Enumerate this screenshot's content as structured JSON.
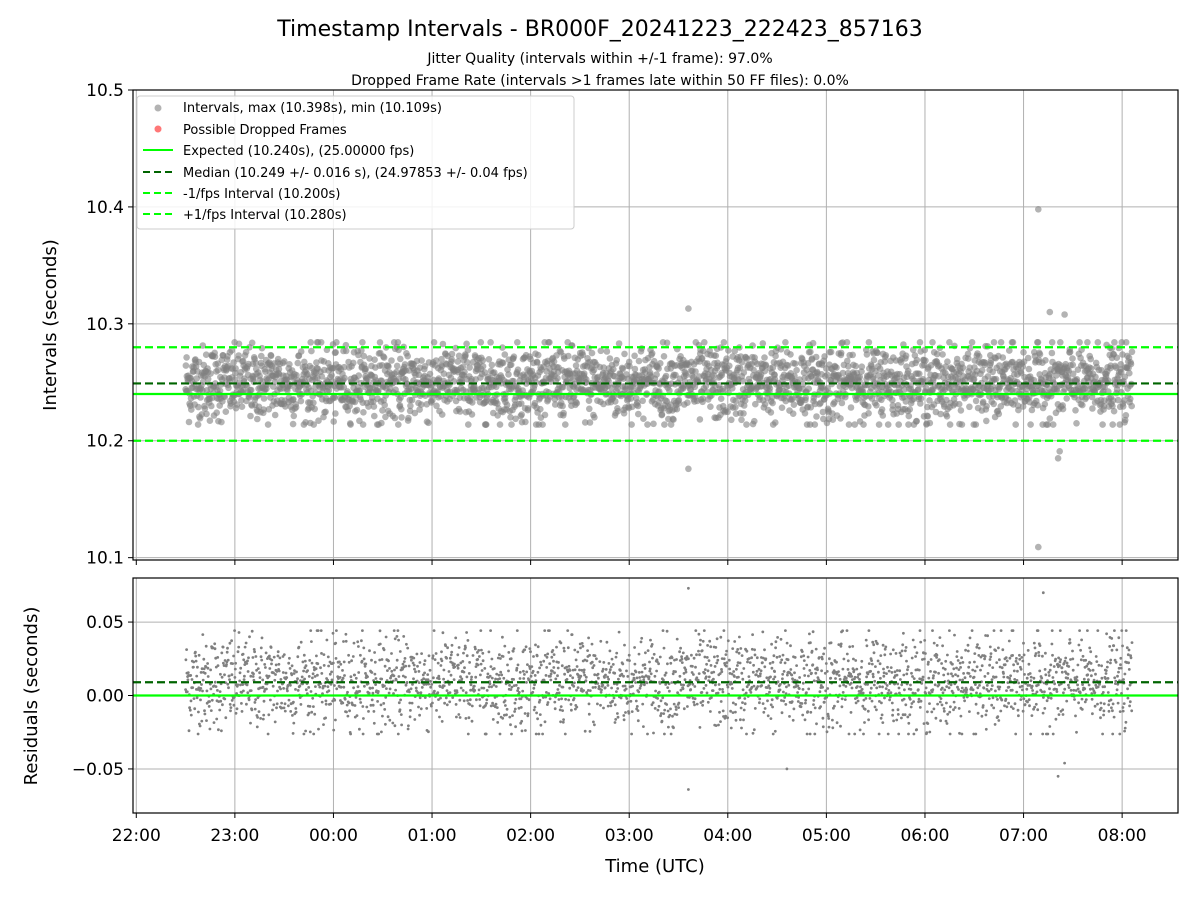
{
  "title": "Timestamp Intervals - BR000F_20241223_222423_857163",
  "subtitle_1": "Jitter Quality (intervals within +/-1 frame): 97.0%",
  "subtitle_2": "Dropped Frame Rate (intervals >1 frames late within 50 FF files): 0.0%",
  "colors": {
    "points": "#808080",
    "dropped": "#ff5555",
    "expected": "#00ff00",
    "median": "#006400",
    "fps_band": "#00ff00",
    "grid": "#b0b0b0"
  },
  "chart_data": [
    {
      "type": "scatter",
      "ylabel": "Intervals (seconds)",
      "ylim": [
        10.098,
        10.5
      ],
      "yticks": [
        10.1,
        10.2,
        10.3,
        10.4,
        10.5
      ],
      "ytick_labels": [
        "10.1",
        "10.2",
        "10.3",
        "10.4",
        "10.5"
      ],
      "xlim": [
        "21:58",
        "08:34"
      ],
      "xticks": [
        "22:00",
        "23:00",
        "00:00",
        "01:00",
        "02:00",
        "03:00",
        "04:00",
        "05:00",
        "06:00",
        "07:00",
        "08:00"
      ],
      "grid": true,
      "legend_position": "upper-left",
      "series": [
        {
          "name": "Intervals, max (10.398s), min (10.109s)",
          "kind": "scatter",
          "x_range": [
            "22:30",
            "08:06"
          ],
          "y_mean": 10.249,
          "y_std": 0.016,
          "n_points": 2800
        },
        {
          "name": "Possible Dropped Frames",
          "kind": "scatter",
          "points": []
        },
        {
          "name": "Expected (10.240s), (25.00000 fps)",
          "kind": "hline",
          "y": 10.24,
          "style": "solid"
        },
        {
          "name": "Median (10.249 +/- 0.016 s), (24.97853 +/- 0.04 fps)",
          "kind": "hline",
          "y": 10.249,
          "style": "dashed"
        },
        {
          "name": "-1/fps Interval (10.200s)",
          "kind": "hline",
          "y": 10.2,
          "style": "dashed"
        },
        {
          "name": "+1/fps Interval (10.280s)",
          "kind": "hline",
          "y": 10.28,
          "style": "dashed"
        }
      ],
      "outliers": [
        {
          "x": "07:09",
          "y": 10.398
        },
        {
          "x": "07:09",
          "y": 10.109
        },
        {
          "x": "03:36",
          "y": 10.313
        },
        {
          "x": "03:36",
          "y": 10.176
        },
        {
          "x": "07:25",
          "y": 10.308
        },
        {
          "x": "07:16",
          "y": 10.31
        },
        {
          "x": "07:21",
          "y": 10.185
        },
        {
          "x": "07:22",
          "y": 10.191
        }
      ]
    },
    {
      "type": "scatter",
      "xlabel": "Time (UTC)",
      "ylabel": "Residuals (seconds)",
      "ylim": [
        -0.08,
        0.08
      ],
      "yticks": [
        -0.05,
        0.0,
        0.05
      ],
      "ytick_labels": [
        "−0.05",
        "0.00",
        "0.05"
      ],
      "xlim": [
        "21:58",
        "08:34"
      ],
      "xticks": [
        "22:00",
        "23:00",
        "00:00",
        "01:00",
        "02:00",
        "03:00",
        "04:00",
        "05:00",
        "06:00",
        "07:00",
        "08:00"
      ],
      "xtick_labels": [
        "22:00",
        "23:00",
        "00:00",
        "01:00",
        "02:00",
        "03:00",
        "04:00",
        "05:00",
        "06:00",
        "07:00",
        "08:00"
      ],
      "grid": true,
      "series": [
        {
          "kind": "scatter",
          "x_range": [
            "22:30",
            "08:06"
          ],
          "y_mean": 0.009,
          "y_std": 0.016,
          "n_points": 2800
        },
        {
          "kind": "hline",
          "y": 0.0,
          "style": "solid"
        },
        {
          "kind": "hline",
          "y": 0.009,
          "style": "dashed"
        }
      ],
      "outliers": [
        {
          "x": "03:36",
          "y": 0.073
        },
        {
          "x": "03:36",
          "y": -0.064
        },
        {
          "x": "07:12",
          "y": 0.07
        },
        {
          "x": "07:21",
          "y": -0.055
        },
        {
          "x": "07:25",
          "y": -0.046
        },
        {
          "x": "04:36",
          "y": -0.05
        }
      ]
    }
  ]
}
